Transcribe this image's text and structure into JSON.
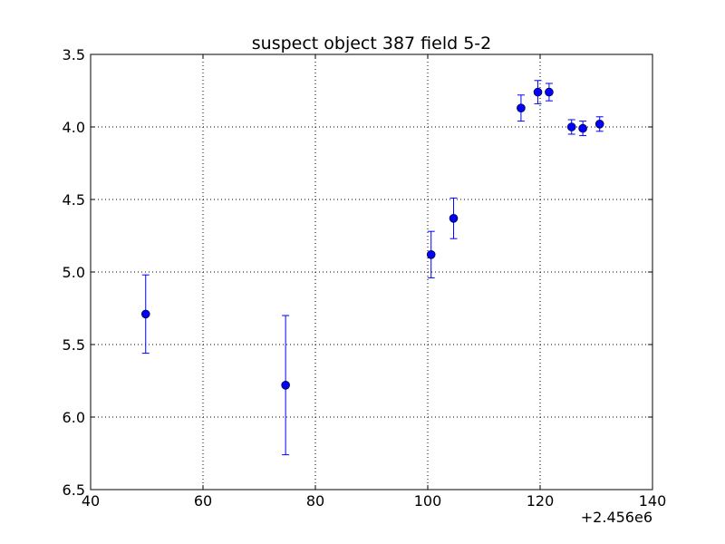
{
  "chart_data": {
    "type": "scatter",
    "title": "suspect object 387 field 5-2",
    "xlabel": "",
    "ylabel": "",
    "x_offset_label": "+2.456e6",
    "xlim": [
      40,
      140
    ],
    "ylim": [
      6.5,
      3.5
    ],
    "y_inverted": true,
    "x_ticks": [
      "40",
      "60",
      "80",
      "100",
      "120",
      "140"
    ],
    "y_ticks": [
      "3.5",
      "4.0",
      "4.5",
      "5.0",
      "5.5",
      "6.0",
      "6.5"
    ],
    "grid": true,
    "legend": "none",
    "colors": {
      "marker": "#0000ff",
      "errorbar": "#0000ff",
      "grid": "#000000"
    },
    "series": [
      {
        "points": [
          {
            "x": 49.8,
            "y": 5.29,
            "yerr": 0.27
          },
          {
            "x": 74.7,
            "y": 5.78,
            "yerr": 0.48
          },
          {
            "x": 100.6,
            "y": 4.88,
            "yerr": 0.16
          },
          {
            "x": 104.6,
            "y": 4.63,
            "yerr": 0.14
          },
          {
            "x": 116.6,
            "y": 3.87,
            "yerr": 0.09
          },
          {
            "x": 119.6,
            "y": 3.76,
            "yerr": 0.08
          },
          {
            "x": 121.6,
            "y": 3.76,
            "yerr": 0.06
          },
          {
            "x": 125.6,
            "y": 4.0,
            "yerr": 0.05
          },
          {
            "x": 127.6,
            "y": 4.01,
            "yerr": 0.05
          },
          {
            "x": 130.6,
            "y": 3.98,
            "yerr": 0.05
          }
        ]
      }
    ]
  }
}
